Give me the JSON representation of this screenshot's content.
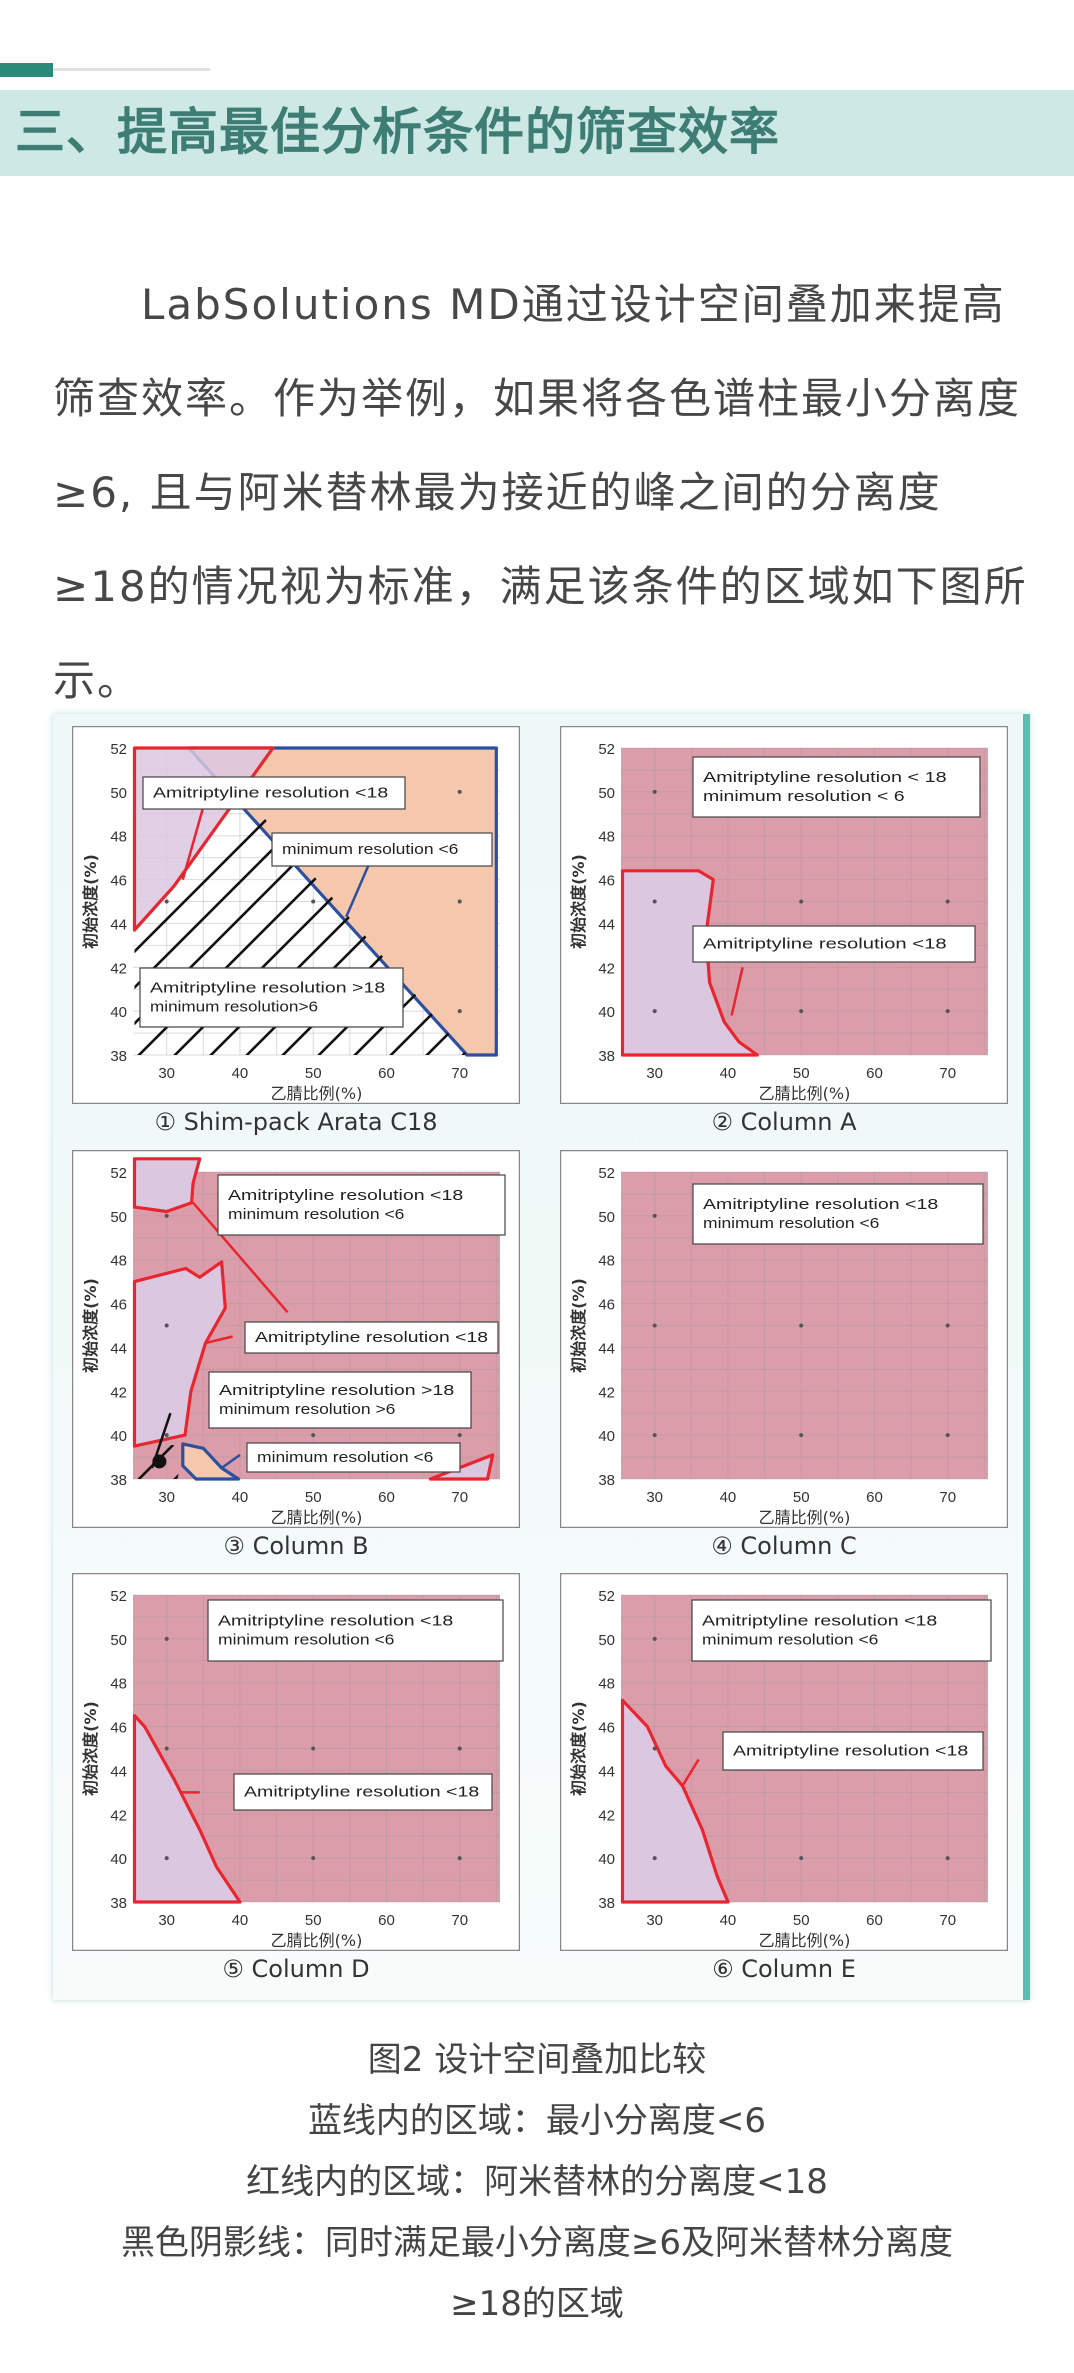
{
  "header": {
    "title": "三、提高最佳分析条件的筛查效率"
  },
  "paragraph": "LabSolutions MD通过设计空间叠加来提高筛查效率。作为举例，如果将各色谱柱最小分离度≥6, 且与阿米替林最为接近的峰之间的分离度≥18的情况视为标准，满足该条件的区域如下图所示。",
  "colors": {
    "pink": "#dc9dab",
    "purple": "#dcc7e0",
    "orange": "#f5c8ad",
    "red": "#e8262f",
    "blue": "#2c4f9e",
    "accent": "#2b8a7a"
  },
  "chart_data": {
    "type": "area",
    "xlabel": "乙腈比例(%)",
    "ylabel": "初始浓度(%)",
    "xlim": [
      25.4,
      75.5
    ],
    "ylim": [
      38,
      52
    ],
    "x_ticks": [
      "30",
      "40",
      "50",
      "60",
      "70"
    ],
    "y_ticks": [
      "38",
      "40",
      "42",
      "44",
      "46",
      "48",
      "50",
      "52"
    ],
    "sample_points": [
      [
        30,
        50
      ],
      [
        70,
        50
      ],
      [
        30,
        45
      ],
      [
        50,
        45
      ],
      [
        70,
        45
      ],
      [
        30,
        40
      ],
      [
        50,
        40
      ],
      [
        70,
        40
      ]
    ],
    "panels": [
      {
        "caption": "① Shim-pack Arata C18",
        "background": "white",
        "regions": [
          {
            "kind": "orange",
            "border": "blue",
            "points": [
              [
                33,
                52
              ],
              [
                75,
                52
              ],
              [
                75,
                38
              ],
              [
                71,
                38
              ]
            ]
          },
          {
            "kind": "purple",
            "border": "red",
            "points": [
              [
                25.6,
                52
              ],
              [
                44.5,
                52
              ],
              [
                31,
                45.7
              ],
              [
                25.6,
                43.7
              ]
            ]
          },
          {
            "kind": "hatch",
            "border": "none",
            "points": [
              [
                25.6,
                43.7
              ],
              [
                31,
                45.7
              ],
              [
                42.3,
                49.2
              ],
              [
                71,
                38
              ],
              [
                25.6,
                38
              ]
            ]
          }
        ],
        "lines": [
          {
            "color": "red",
            "points": [
              [
                36,
                50.5
              ],
              [
                32.2,
                46
              ]
            ]
          },
          {
            "color": "blue",
            "points": [
              [
                54.5,
                44.3
              ],
              [
                58,
                47
              ]
            ]
          }
        ],
        "labels": [
          [
            "Amitriptyline resolution <18"
          ],
          [
            "minimum resolution <6"
          ],
          [
            "Amitriptyline resolution >18",
            "minimum resolution>6"
          ]
        ]
      },
      {
        "caption": "② Column A",
        "background": "pink",
        "regions": [
          {
            "kind": "purple",
            "border": "red",
            "points": [
              [
                25.6,
                46.4
              ],
              [
                36,
                46.4
              ],
              [
                38,
                46
              ],
              [
                37,
                43.5
              ],
              [
                37.5,
                41.3
              ],
              [
                39.5,
                39.5
              ],
              [
                41.5,
                38.6
              ],
              [
                44,
                38
              ],
              [
                25.6,
                38
              ]
            ]
          }
        ],
        "lines": [
          {
            "color": "red",
            "points": [
              [
                40.5,
                39.8
              ],
              [
                42,
                42
              ]
            ]
          }
        ],
        "labels": [
          [
            "Amitriptyline resolution < 18",
            "minimum  resolution  < 6"
          ],
          [
            "Amitriptyline  resolution <18"
          ]
        ]
      },
      {
        "caption": "③ Column B",
        "background": "pink",
        "regions": [
          {
            "kind": "purple",
            "border": "red",
            "points": [
              [
                25.6,
                52.6
              ],
              [
                34.5,
                52.6
              ],
              [
                33.6,
                51.5
              ],
              [
                33.4,
                50.6
              ],
              [
                30,
                50.2
              ],
              [
                25.6,
                50.4
              ]
            ]
          },
          {
            "kind": "purple",
            "border": "red",
            "points": [
              [
                25.6,
                47
              ],
              [
                32.6,
                47.6
              ],
              [
                34.5,
                47.2
              ],
              [
                37.5,
                47.9
              ],
              [
                38,
                45.8
              ],
              [
                35.3,
                44.2
              ],
              [
                33.3,
                42
              ],
              [
                32.5,
                40
              ],
              [
                25.6,
                39.5
              ]
            ]
          },
          {
            "kind": "orange",
            "border": "blue",
            "points": [
              [
                32.2,
                39.6
              ],
              [
                35,
                39.4
              ],
              [
                37.5,
                38.5
              ],
              [
                39.8,
                38
              ],
              [
                34,
                38
              ],
              [
                32.2,
                38.6
              ]
            ]
          },
          {
            "kind": "purple",
            "border": "red",
            "points": [
              [
                66,
                38
              ],
              [
                74.5,
                39.1
              ],
              [
                73.8,
                38
              ]
            ]
          },
          {
            "kind": "hatch",
            "border": "none",
            "points": [
              [
                26,
                38
              ],
              [
                31.5,
                38
              ],
              [
                32.2,
                39.5
              ],
              [
                29,
                39.6
              ]
            ]
          }
        ],
        "lines": [
          {
            "color": "red",
            "points": [
              [
                33.6,
                50.6
              ],
              [
                46.5,
                45.6
              ]
            ]
          },
          {
            "color": "red",
            "points": [
              [
                35.3,
                44.2
              ],
              [
                39,
                44.5
              ]
            ]
          },
          {
            "color": "black",
            "points": [
              [
                28,
                38.5
              ],
              [
                30.5,
                41
              ]
            ]
          },
          {
            "color": "blue",
            "points": [
              [
                37.5,
                38.5
              ],
              [
                40,
                39.1
              ]
            ]
          }
        ],
        "labels": [
          [
            "Amitriptyline resolution <18",
            "minimum resolution <6"
          ],
          [
            "Amitriptyline resolution <18"
          ],
          [
            "Amitriptyline resolution >18",
            "minimum resolution >6"
          ],
          [
            "minimum resolution <6"
          ]
        ]
      },
      {
        "caption": "④ Column C",
        "background": "pink",
        "regions": [],
        "lines": [],
        "labels": [
          [
            "Amitriptyline resolution <18",
            "minimum resolution <6"
          ]
        ]
      },
      {
        "caption": "⑤ Column D",
        "background": "pink",
        "regions": [
          {
            "kind": "purple",
            "border": "red",
            "points": [
              [
                25.6,
                46.5
              ],
              [
                27,
                46
              ],
              [
                31,
                43.6
              ],
              [
                34.5,
                41.3
              ],
              [
                36.8,
                39.6
              ],
              [
                40,
                38
              ],
              [
                25.6,
                38
              ]
            ]
          }
        ],
        "lines": [
          {
            "color": "red",
            "points": [
              [
                31.8,
                43
              ],
              [
                34.5,
                43
              ]
            ]
          }
        ],
        "labels": [
          [
            "Amitriptyline resolution <18",
            "minimum resolution <6"
          ],
          [
            "Amitriptyline resolution <18"
          ]
        ]
      },
      {
        "caption": "⑥ Column E",
        "background": "pink",
        "regions": [
          {
            "kind": "purple",
            "border": "red",
            "points": [
              [
                25.6,
                47.2
              ],
              [
                29,
                46
              ],
              [
                31.5,
                44.2
              ],
              [
                33.8,
                43.3
              ],
              [
                36.5,
                41.3
              ],
              [
                38.5,
                39.2
              ],
              [
                40,
                38
              ],
              [
                25.6,
                38
              ]
            ]
          }
        ],
        "lines": [
          {
            "color": "red",
            "points": [
              [
                33.8,
                43.3
              ],
              [
                36,
                44.5
              ]
            ]
          }
        ],
        "labels": [
          [
            "Amitriptyline resolution <18",
            "minimum resolution <6"
          ],
          [
            "Amitriptyline resolution <18"
          ]
        ]
      }
    ]
  },
  "figure_captions": [
    "图2 设计空间叠加比较",
    "蓝线内的区域：最小分离度<6",
    "红线内的区域：阿米替林的分离度<18",
    "黑色阴影线：同时满足最小分离度≥6及阿米替林分离度",
    "≥18的区域"
  ]
}
